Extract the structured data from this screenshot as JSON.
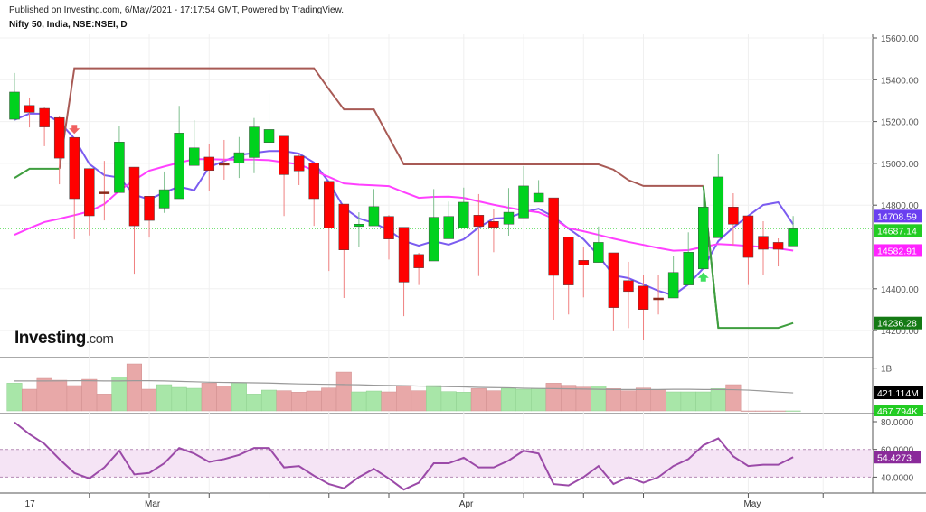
{
  "header": {
    "published": "Published on Investing.com, 6/May/2021 - 17:17:54 GMT, Powered by TradingView.",
    "symbol": "Nifty 50, India, NSE:NSEI, D"
  },
  "logo": {
    "text": "Investing",
    "suffix": ".com"
  },
  "colors": {
    "up": "#00d21e",
    "down": "#ff0000",
    "fast_ma": "#7b5cf0",
    "slow_ma": "#ff40ff",
    "upper_channel": "#a85a55",
    "lower_channel": "#3f9e3f",
    "vol_up": "#a8e6a8",
    "vol_down": "#e8a8a8",
    "vol_ma": "#999999",
    "rsi": "#9b4aa8",
    "rsi_band": "#f5e4f5"
  },
  "chart_data": [
    {
      "type": "candlestick",
      "title": "Nifty 50, India, NSE:NSEI, D",
      "ylim": [
        14130,
        15620
      ],
      "y_ticks": [
        "15600.00",
        "15400.00",
        "15200.00",
        "15000.00",
        "14800.00",
        "14400.00",
        "14200.00"
      ],
      "x_tick_labels": [
        {
          "label": "17",
          "date": "2021-02-17"
        },
        {
          "label": "Mar",
          "date": "2021-03-01"
        },
        {
          "label": "Apr",
          "date": "2021-04-01"
        },
        {
          "label": "May",
          "date": "2021-05-03"
        }
      ],
      "dates": [
        "2021-02-16",
        "2021-02-17",
        "2021-02-18",
        "2021-02-19",
        "2021-02-22",
        "2021-02-23",
        "2021-02-24",
        "2021-02-25",
        "2021-02-26",
        "2021-03-01",
        "2021-03-02",
        "2021-03-03",
        "2021-03-04",
        "2021-03-05",
        "2021-03-08",
        "2021-03-09",
        "2021-03-10",
        "2021-03-12",
        "2021-03-15",
        "2021-03-16",
        "2021-03-17",
        "2021-03-18",
        "2021-03-19",
        "2021-03-22",
        "2021-03-23",
        "2021-03-24",
        "2021-03-25",
        "2021-03-26",
        "2021-03-30",
        "2021-03-31",
        "2021-04-01",
        "2021-04-05",
        "2021-04-06",
        "2021-04-07",
        "2021-04-08",
        "2021-04-09",
        "2021-04-12",
        "2021-04-13",
        "2021-04-15",
        "2021-04-16",
        "2021-04-19",
        "2021-04-20",
        "2021-04-22",
        "2021-04-23",
        "2021-04-26",
        "2021-04-27",
        "2021-04-28",
        "2021-04-29",
        "2021-04-30",
        "2021-05-03",
        "2021-05-04",
        "2021-05-05",
        "2021-05-06"
      ],
      "ohlc": [
        [
          15211,
          15432,
          15205,
          15341
        ],
        [
          15277,
          15315,
          15172,
          15244
        ],
        [
          15263,
          15270,
          15082,
          15174
        ],
        [
          15219,
          15225,
          14900,
          15025
        ],
        [
          15124,
          15124,
          14637,
          14831
        ],
        [
          14975,
          14975,
          14655,
          14749
        ],
        [
          14863,
          15012,
          14727,
          14863
        ],
        [
          14860,
          15181,
          14860,
          15102
        ],
        [
          14982,
          14982,
          14472,
          14701
        ],
        [
          14843,
          14843,
          14645,
          14727
        ],
        [
          14786,
          14961,
          14763,
          14874
        ],
        [
          14831,
          15275,
          14831,
          15145
        ],
        [
          14990,
          15207,
          14990,
          15074
        ],
        [
          15030,
          15094,
          14867,
          14966
        ],
        [
          15000,
          15112,
          14922,
          15000
        ],
        [
          15001,
          15126,
          14930,
          15051
        ],
        [
          15028,
          15217,
          14953,
          15174
        ],
        [
          15100,
          15335,
          14958,
          15162
        ],
        [
          15130,
          15130,
          14748,
          14946
        ],
        [
          15035,
          15047,
          14896,
          14964
        ],
        [
          15001,
          15001,
          14701,
          14831
        ],
        [
          14914,
          14914,
          14485,
          14690
        ],
        [
          14805,
          14805,
          14356,
          14586
        ],
        [
          14698,
          14766,
          14601,
          14709
        ],
        [
          14701,
          14877,
          14701,
          14793
        ],
        [
          14746,
          14753,
          14540,
          14638
        ],
        [
          14694,
          14694,
          14269,
          14432
        ],
        [
          14564,
          14572,
          14418,
          14500
        ],
        [
          14533,
          14877,
          14533,
          14742
        ],
        [
          14639,
          14817,
          14639,
          14746
        ],
        [
          14692,
          14884,
          14692,
          14814
        ],
        [
          14752,
          14853,
          14461,
          14698
        ],
        [
          14722,
          14780,
          14575,
          14694
        ],
        [
          14709,
          14882,
          14654,
          14766
        ],
        [
          14739,
          14987,
          14739,
          14892
        ],
        [
          14814,
          14920,
          14814,
          14857
        ],
        [
          14835,
          14835,
          14252,
          14464
        ],
        [
          14648,
          14648,
          14277,
          14418
        ],
        [
          14536,
          14601,
          14359,
          14514
        ],
        [
          14526,
          14698,
          14526,
          14622
        ],
        [
          14572,
          14572,
          14197,
          14310
        ],
        [
          14439,
          14529,
          14212,
          14387
        ],
        [
          14413,
          14464,
          14157,
          14301
        ],
        [
          14356,
          14464,
          14277,
          14356
        ],
        [
          14356,
          14558,
          14356,
          14478
        ],
        [
          14418,
          14670,
          14418,
          14575
        ],
        [
          14495,
          14874,
          14495,
          14791
        ],
        [
          14644,
          15047,
          14644,
          14935
        ],
        [
          14791,
          14857,
          14608,
          14709
        ],
        [
          14749,
          14749,
          14418,
          14550
        ],
        [
          14651,
          14723,
          14464,
          14589
        ],
        [
          14622,
          14641,
          14507,
          14589
        ],
        [
          14605,
          14748,
          14605,
          14687.14
        ]
      ],
      "series": [
        {
          "key": "fast_ma",
          "last_label": "14708.59",
          "values": [
            15208,
            15238,
            15237,
            15198,
            15119,
            14997,
            14943,
            14932,
            14850,
            14827,
            14861,
            14889,
            14871,
            14982,
            15011,
            15040,
            15050,
            15059,
            15059,
            15047,
            15004,
            14910,
            14788,
            14737,
            14714,
            14680,
            14629,
            14606,
            14628,
            14611,
            14637,
            14693,
            14736,
            14740,
            14766,
            14783,
            14745,
            14688,
            14637,
            14559,
            14464,
            14451,
            14421,
            14390,
            14369,
            14421,
            14498,
            14628,
            14693,
            14749,
            14801,
            14814,
            14708.59
          ]
        },
        {
          "key": "slow_ma",
          "last_label": "14582.91",
          "values": [
            14658,
            14690,
            14719,
            14735,
            14752,
            14770,
            14805,
            14870,
            14920,
            14965,
            14985,
            15003,
            15020,
            15020,
            15018,
            15018,
            15018,
            15015,
            15005,
            14996,
            14965,
            14935,
            14904,
            14898,
            14895,
            14891,
            14862,
            14835,
            14840,
            14841,
            14835,
            14818,
            14802,
            14788,
            14775,
            14766,
            14735,
            14690,
            14675,
            14658,
            14640,
            14624,
            14610,
            14595,
            14582,
            14585,
            14600,
            14614,
            14610,
            14605,
            14600,
            14593,
            14582.91
          ]
        },
        {
          "key": "upper_channel",
          "values": [
            null,
            null,
            null,
            14974,
            15455,
            15455,
            15455,
            15455,
            15455,
            15455,
            15455,
            15455,
            15455,
            15455,
            15455,
            15455,
            15455,
            15455,
            15455,
            15455,
            15455,
            15354,
            15258,
            15258,
            15258,
            15125,
            14995,
            14995,
            14995,
            14995,
            14995,
            14995,
            14995,
            14995,
            14995,
            14995,
            14995,
            14995,
            14995,
            14995,
            14970,
            14920,
            14892,
            14892,
            14892,
            14892,
            14892,
            null,
            null,
            null,
            null,
            null,
            null
          ]
        },
        {
          "key": "lower_channel",
          "last_label": "14236.28",
          "values": [
            14930,
            14974,
            14974,
            14974,
            null,
            null,
            null,
            null,
            null,
            null,
            null,
            null,
            null,
            null,
            null,
            null,
            null,
            null,
            null,
            null,
            null,
            null,
            null,
            null,
            null,
            null,
            null,
            null,
            null,
            null,
            null,
            null,
            null,
            null,
            null,
            null,
            null,
            null,
            null,
            null,
            null,
            null,
            null,
            null,
            null,
            null,
            14892,
            14213,
            14213,
            14213,
            14213,
            14213,
            14236.28
          ]
        }
      ],
      "last_close_label": "14687.14",
      "signals": [
        {
          "date": "2021-02-22",
          "type": "sell"
        },
        {
          "date": "2021-04-28",
          "type": "buy"
        }
      ]
    },
    {
      "type": "bar",
      "name": "volume",
      "y_ticks": [
        "1B"
      ],
      "ylim_millions": [
        0,
        1270
      ],
      "values_millions": [
        648,
        507,
        761,
        718,
        592,
        739,
        394,
        796,
        1099,
        507,
        613,
        549,
        528,
        648,
        585,
        662,
        394,
        486,
        472,
        437,
        465,
        535,
        908,
        444,
        465,
        444,
        592,
        472,
        592,
        451,
        437,
        521,
        472,
        528,
        507,
        521,
        648,
        599,
        556,
        577,
        521,
        472,
        535,
        493,
        444,
        444,
        444,
        521,
        613,
        0,
        0,
        0,
        0.468
      ],
      "ma_millions": [
        700,
        700,
        700,
        702,
        705,
        705,
        700,
        700,
        705,
        705,
        700,
        690,
        680,
        670,
        665,
        660,
        655,
        650,
        640,
        630,
        625,
        620,
        615,
        610,
        600,
        595,
        590,
        580,
        575,
        565,
        560,
        550,
        545,
        540,
        530,
        525,
        520,
        515,
        510,
        505,
        500,
        500,
        500,
        500,
        505,
        505,
        500,
        500,
        495,
        485,
        465,
        440,
        421.114
      ],
      "ma_label": "421.114M",
      "last_label": "467.794K"
    },
    {
      "type": "line",
      "name": "rsi",
      "ylim": [
        25,
        84
      ],
      "y_ticks": [
        "80.0000",
        "60.0000",
        "40.0000"
      ],
      "band": [
        40,
        60
      ],
      "values": [
        79.6,
        71,
        64,
        53,
        43,
        39,
        47,
        59,
        42,
        43,
        50,
        61,
        57,
        51,
        53,
        56,
        61,
        61,
        47,
        48,
        41,
        35,
        32,
        40,
        46,
        39,
        31,
        36,
        50,
        50,
        54,
        47,
        47,
        52,
        59,
        57,
        35,
        34,
        40,
        48,
        35,
        40,
        36,
        40,
        48,
        53,
        63,
        68,
        55,
        48,
        49,
        49,
        54.4273
      ],
      "last_label": "54.4273"
    }
  ]
}
